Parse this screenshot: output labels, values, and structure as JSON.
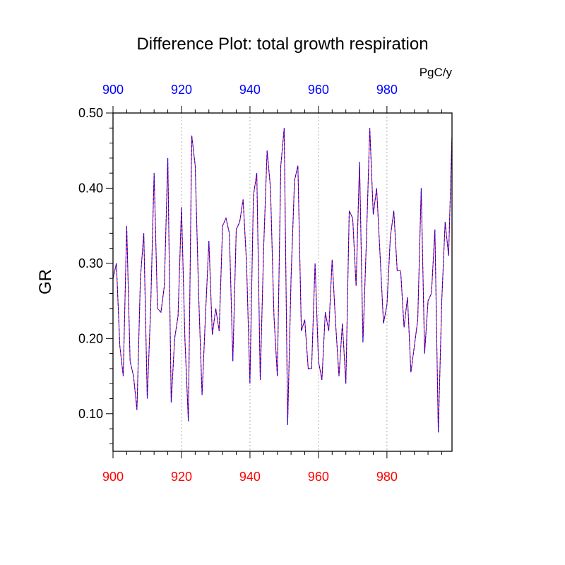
{
  "chart_data": {
    "type": "line",
    "title": "Difference Plot: total growth respiration",
    "units_label": "PgC/y",
    "ylabel": "GR",
    "xlabel": "",
    "xlim": [
      900,
      999
    ],
    "ylim": [
      0.05,
      0.5
    ],
    "x_ticks": [
      900,
      920,
      940,
      960,
      980
    ],
    "x_tick_labels": [
      "900",
      "920",
      "940",
      "960",
      "980"
    ],
    "y_ticks": [
      0.1,
      0.2,
      0.3,
      0.4,
      0.5
    ],
    "y_tick_labels": [
      "0.10",
      "0.20",
      "0.30",
      "0.40",
      "0.50"
    ],
    "grid": "vertical-dotted",
    "colors": {
      "top_axis": "#0000ff",
      "bottom_axis": "#ff0000",
      "series_a": "#ff0000",
      "series_b": "#0000ff",
      "grid": "#b0b0b0",
      "frame": "#000000"
    },
    "x_start": 900,
    "series": [
      {
        "name": "difference",
        "values": [
          0.28,
          0.3,
          0.19,
          0.15,
          0.35,
          0.17,
          0.15,
          0.105,
          0.28,
          0.34,
          0.12,
          0.24,
          0.42,
          0.24,
          0.235,
          0.27,
          0.44,
          0.115,
          0.2,
          0.23,
          0.375,
          0.2,
          0.09,
          0.47,
          0.43,
          0.26,
          0.125,
          0.23,
          0.33,
          0.205,
          0.24,
          0.21,
          0.35,
          0.36,
          0.34,
          0.17,
          0.345,
          0.355,
          0.385,
          0.3,
          0.14,
          0.39,
          0.42,
          0.145,
          0.32,
          0.45,
          0.4,
          0.23,
          0.15,
          0.43,
          0.48,
          0.085,
          0.28,
          0.41,
          0.43,
          0.21,
          0.225,
          0.16,
          0.16,
          0.3,
          0.17,
          0.145,
          0.235,
          0.21,
          0.305,
          0.22,
          0.15,
          0.22,
          0.14,
          0.37,
          0.36,
          0.27,
          0.435,
          0.195,
          0.33,
          0.48,
          0.365,
          0.4,
          0.31,
          0.22,
          0.245,
          0.335,
          0.37,
          0.29,
          0.29,
          0.215,
          0.255,
          0.155,
          0.19,
          0.225,
          0.4,
          0.18,
          0.25,
          0.26,
          0.345,
          0.075,
          0.25,
          0.355,
          0.31,
          0.47
        ]
      }
    ]
  }
}
